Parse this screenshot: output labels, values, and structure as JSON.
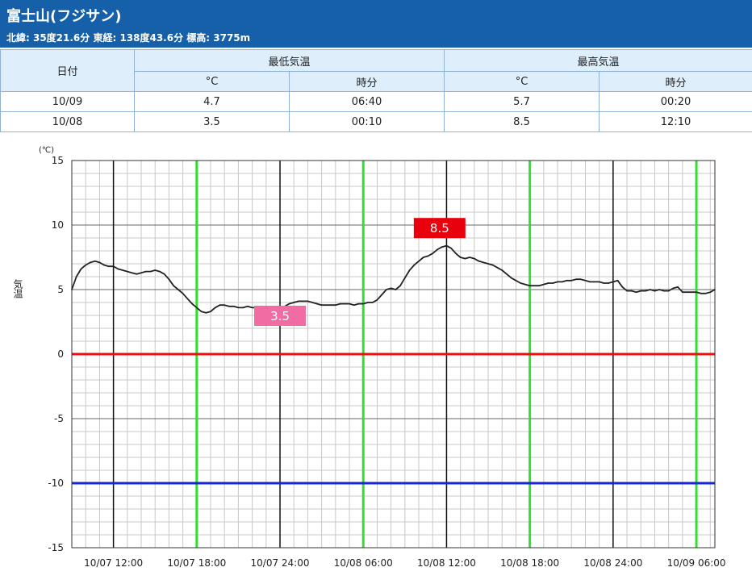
{
  "station": {
    "title": "富士山(フジサン)",
    "info": "北緯: 35度21.6分 東経: 138度43.6分 標高: 3775m"
  },
  "table": {
    "date_header": "日付",
    "min_header": "最低気温",
    "max_header": "最高気温",
    "unit_c": "°C",
    "unit_time": "時分",
    "rows": [
      {
        "date": "10/09",
        "min_c": "4.7",
        "min_time": "06:40",
        "max_c": "5.7",
        "max_time": "00:20"
      },
      {
        "date": "10/08",
        "min_c": "3.5",
        "min_time": "00:10",
        "max_c": "8.5",
        "max_time": "12:10"
      }
    ]
  },
  "chart_data": {
    "type": "line",
    "ylabel": "気温",
    "yunit": "(℃)",
    "ylim": [
      -15,
      15
    ],
    "ytick_values": [
      15,
      10,
      5,
      0,
      -5,
      -10,
      -15
    ],
    "ytick_labels": [
      "15",
      "10",
      "5",
      "0",
      "-5",
      "-10",
      "-15"
    ],
    "xlim": [
      "10/07 09:00",
      "10/09 07:20"
    ],
    "xtick_labels": [
      "10/07 12:00",
      "10/07 18:00",
      "10/07 24:00",
      "10/08 06:00",
      "10/08 12:00",
      "10/08 18:00",
      "10/08 24:00",
      "10/09 06:00"
    ],
    "reference_lines": [
      {
        "y": 0,
        "color": "#e8120c"
      },
      {
        "y": -10,
        "color": "#1428d2"
      }
    ],
    "day_lines_color": "#33dd33",
    "series_color": "#222222",
    "annotations": [
      {
        "text": "8.5",
        "time": "10/08 11:30",
        "y": 9.8,
        "color": "#e8000d"
      },
      {
        "text": "3.5",
        "time": "10/08 00:00",
        "y": 3.0,
        "color": "#f06ca2"
      }
    ],
    "series": [
      {
        "points": [
          [
            "10/07 09:00",
            5.0
          ],
          [
            "10/07 09:20",
            6.0
          ],
          [
            "10/07 09:40",
            6.6
          ],
          [
            "10/07 10:00",
            6.9
          ],
          [
            "10/07 10:20",
            7.1
          ],
          [
            "10/07 10:40",
            7.2
          ],
          [
            "10/07 11:00",
            7.1
          ],
          [
            "10/07 11:20",
            6.9
          ],
          [
            "10/07 11:40",
            6.8
          ],
          [
            "10/07 12:00",
            6.8
          ],
          [
            "10/07 12:20",
            6.6
          ],
          [
            "10/07 12:40",
            6.5
          ],
          [
            "10/07 13:00",
            6.4
          ],
          [
            "10/07 13:20",
            6.3
          ],
          [
            "10/07 13:40",
            6.2
          ],
          [
            "10/07 14:00",
            6.3
          ],
          [
            "10/07 14:20",
            6.4
          ],
          [
            "10/07 14:40",
            6.4
          ],
          [
            "10/07 15:00",
            6.5
          ],
          [
            "10/07 15:20",
            6.4
          ],
          [
            "10/07 15:40",
            6.2
          ],
          [
            "10/07 16:00",
            5.8
          ],
          [
            "10/07 16:20",
            5.3
          ],
          [
            "10/07 16:40",
            5.0
          ],
          [
            "10/07 17:00",
            4.7
          ],
          [
            "10/07 17:20",
            4.3
          ],
          [
            "10/07 17:40",
            3.9
          ],
          [
            "10/07 18:00",
            3.6
          ],
          [
            "10/07 18:20",
            3.3
          ],
          [
            "10/07 18:40",
            3.2
          ],
          [
            "10/07 19:00",
            3.3
          ],
          [
            "10/07 19:20",
            3.6
          ],
          [
            "10/07 19:40",
            3.8
          ],
          [
            "10/07 20:00",
            3.8
          ],
          [
            "10/07 20:20",
            3.7
          ],
          [
            "10/07 20:40",
            3.7
          ],
          [
            "10/07 21:00",
            3.6
          ],
          [
            "10/07 21:20",
            3.6
          ],
          [
            "10/07 21:40",
            3.7
          ],
          [
            "10/07 22:00",
            3.6
          ],
          [
            "10/07 22:20",
            3.6
          ],
          [
            "10/07 22:40",
            3.7
          ],
          [
            "10/07 23:00",
            3.6
          ],
          [
            "10/07 23:20",
            3.6
          ],
          [
            "10/07 23:40",
            3.5
          ],
          [
            "10/08 00:00",
            3.5
          ],
          [
            "10/08 00:20",
            3.7
          ],
          [
            "10/08 00:40",
            3.9
          ],
          [
            "10/08 01:00",
            4.0
          ],
          [
            "10/08 01:20",
            4.1
          ],
          [
            "10/08 01:40",
            4.1
          ],
          [
            "10/08 02:00",
            4.1
          ],
          [
            "10/08 02:20",
            4.0
          ],
          [
            "10/08 02:40",
            3.9
          ],
          [
            "10/08 03:00",
            3.8
          ],
          [
            "10/08 03:20",
            3.8
          ],
          [
            "10/08 03:40",
            3.8
          ],
          [
            "10/08 04:00",
            3.8
          ],
          [
            "10/08 04:20",
            3.9
          ],
          [
            "10/08 04:40",
            3.9
          ],
          [
            "10/08 05:00",
            3.9
          ],
          [
            "10/08 05:20",
            3.8
          ],
          [
            "10/08 05:40",
            3.9
          ],
          [
            "10/08 06:00",
            3.9
          ],
          [
            "10/08 06:20",
            4.0
          ],
          [
            "10/08 06:40",
            4.0
          ],
          [
            "10/08 07:00",
            4.2
          ],
          [
            "10/08 07:20",
            4.6
          ],
          [
            "10/08 07:40",
            5.0
          ],
          [
            "10/08 08:00",
            5.1
          ],
          [
            "10/08 08:20",
            5.0
          ],
          [
            "10/08 08:40",
            5.3
          ],
          [
            "10/08 09:00",
            5.9
          ],
          [
            "10/08 09:20",
            6.5
          ],
          [
            "10/08 09:40",
            6.9
          ],
          [
            "10/08 10:00",
            7.2
          ],
          [
            "10/08 10:20",
            7.5
          ],
          [
            "10/08 10:40",
            7.6
          ],
          [
            "10/08 11:00",
            7.8
          ],
          [
            "10/08 11:20",
            8.1
          ],
          [
            "10/08 11:40",
            8.3
          ],
          [
            "10/08 12:00",
            8.4
          ],
          [
            "10/08 12:20",
            8.2
          ],
          [
            "10/08 12:40",
            7.8
          ],
          [
            "10/08 13:00",
            7.5
          ],
          [
            "10/08 13:20",
            7.4
          ],
          [
            "10/08 13:40",
            7.5
          ],
          [
            "10/08 14:00",
            7.4
          ],
          [
            "10/08 14:20",
            7.2
          ],
          [
            "10/08 14:40",
            7.1
          ],
          [
            "10/08 15:00",
            7.0
          ],
          [
            "10/08 15:20",
            6.9
          ],
          [
            "10/08 15:40",
            6.7
          ],
          [
            "10/08 16:00",
            6.5
          ],
          [
            "10/08 16:20",
            6.2
          ],
          [
            "10/08 16:40",
            5.9
          ],
          [
            "10/08 17:00",
            5.7
          ],
          [
            "10/08 17:20",
            5.5
          ],
          [
            "10/08 17:40",
            5.4
          ],
          [
            "10/08 18:00",
            5.3
          ],
          [
            "10/08 18:20",
            5.3
          ],
          [
            "10/08 18:40",
            5.3
          ],
          [
            "10/08 19:00",
            5.4
          ],
          [
            "10/08 19:20",
            5.5
          ],
          [
            "10/08 19:40",
            5.5
          ],
          [
            "10/08 20:00",
            5.6
          ],
          [
            "10/08 20:20",
            5.6
          ],
          [
            "10/08 20:40",
            5.7
          ],
          [
            "10/08 21:00",
            5.7
          ],
          [
            "10/08 21:20",
            5.8
          ],
          [
            "10/08 21:40",
            5.8
          ],
          [
            "10/08 22:00",
            5.7
          ],
          [
            "10/08 22:20",
            5.6
          ],
          [
            "10/08 22:40",
            5.6
          ],
          [
            "10/08 23:00",
            5.6
          ],
          [
            "10/08 23:20",
            5.5
          ],
          [
            "10/08 23:40",
            5.5
          ],
          [
            "10/09 00:00",
            5.6
          ],
          [
            "10/09 00:20",
            5.7
          ],
          [
            "10/09 00:40",
            5.2
          ],
          [
            "10/09 01:00",
            4.9
          ],
          [
            "10/09 01:20",
            4.9
          ],
          [
            "10/09 01:40",
            4.8
          ],
          [
            "10/09 02:00",
            4.9
          ],
          [
            "10/09 02:20",
            4.9
          ],
          [
            "10/09 02:40",
            5.0
          ],
          [
            "10/09 03:00",
            4.9
          ],
          [
            "10/09 03:20",
            5.0
          ],
          [
            "10/09 03:40",
            4.9
          ],
          [
            "10/09 04:00",
            4.9
          ],
          [
            "10/09 04:20",
            5.1
          ],
          [
            "10/09 04:40",
            5.2
          ],
          [
            "10/09 05:00",
            4.8
          ],
          [
            "10/09 05:20",
            4.8
          ],
          [
            "10/09 05:40",
            4.8
          ],
          [
            "10/09 06:00",
            4.8
          ],
          [
            "10/09 06:20",
            4.7
          ],
          [
            "10/09 06:40",
            4.7
          ],
          [
            "10/09 07:00",
            4.8
          ],
          [
            "10/09 07:20",
            5.0
          ]
        ]
      }
    ]
  }
}
